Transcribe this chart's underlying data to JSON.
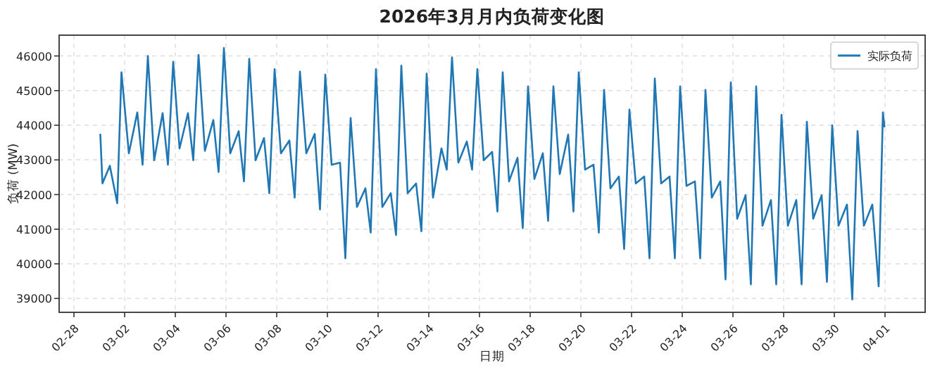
{
  "chart_data": {
    "type": "line",
    "title": "2026年3月月内负荷变化图",
    "xlabel": "日期",
    "ylabel": "负荷 (MW)",
    "x": [
      "2026-03-01T01:00",
      "2026-03-01T03:00",
      "2026-03-01T10:00",
      "2026-03-01T17:00",
      "2026-03-01T21:00",
      "2026-03-02T04:00",
      "2026-03-02T12:00",
      "2026-03-02T17:00",
      "2026-03-02T22:00",
      "2026-03-03T04:00",
      "2026-03-03T12:00",
      "2026-03-03T17:00",
      "2026-03-03T22:00",
      "2026-03-04T04:00",
      "2026-03-04T12:00",
      "2026-03-04T17:00",
      "2026-03-04T22:00",
      "2026-03-05T04:00",
      "2026-03-05T12:00",
      "2026-03-05T17:00",
      "2026-03-05T22:00",
      "2026-03-06T04:00",
      "2026-03-06T12:00",
      "2026-03-06T17:00",
      "2026-03-06T22:00",
      "2026-03-07T04:00",
      "2026-03-07T12:00",
      "2026-03-07T17:00",
      "2026-03-07T22:00",
      "2026-03-08T04:00",
      "2026-03-08T12:00",
      "2026-03-08T17:00",
      "2026-03-08T22:00",
      "2026-03-09T04:00",
      "2026-03-09T12:00",
      "2026-03-09T17:00",
      "2026-03-09T22:00",
      "2026-03-10T04:00",
      "2026-03-10T12:00",
      "2026-03-10T17:00",
      "2026-03-10T22:00",
      "2026-03-11T04:00",
      "2026-03-11T12:00",
      "2026-03-11T17:00",
      "2026-03-11T22:00",
      "2026-03-12T04:00",
      "2026-03-12T12:00",
      "2026-03-12T17:00",
      "2026-03-12T22:00",
      "2026-03-13T04:00",
      "2026-03-13T12:00",
      "2026-03-13T17:00",
      "2026-03-13T22:00",
      "2026-03-14T04:00",
      "2026-03-14T12:00",
      "2026-03-14T17:00",
      "2026-03-14T22:00",
      "2026-03-15T04:00",
      "2026-03-15T12:00",
      "2026-03-15T17:00",
      "2026-03-15T22:00",
      "2026-03-16T04:00",
      "2026-03-16T12:00",
      "2026-03-16T17:00",
      "2026-03-16T22:00",
      "2026-03-17T04:00",
      "2026-03-17T12:00",
      "2026-03-17T17:00",
      "2026-03-17T22:00",
      "2026-03-18T04:00",
      "2026-03-18T12:00",
      "2026-03-18T17:00",
      "2026-03-18T22:00",
      "2026-03-19T04:00",
      "2026-03-19T12:00",
      "2026-03-19T17:00",
      "2026-03-19T22:00",
      "2026-03-20T04:00",
      "2026-03-20T12:00",
      "2026-03-20T17:00",
      "2026-03-20T22:00",
      "2026-03-21T04:00",
      "2026-03-21T12:00",
      "2026-03-21T17:00",
      "2026-03-21T22:00",
      "2026-03-22T04:00",
      "2026-03-22T12:00",
      "2026-03-22T17:00",
      "2026-03-22T22:00",
      "2026-03-23T04:00",
      "2026-03-23T12:00",
      "2026-03-23T17:00",
      "2026-03-23T22:00",
      "2026-03-24T04:00",
      "2026-03-24T12:00",
      "2026-03-24T17:00",
      "2026-03-24T22:00",
      "2026-03-25T04:00",
      "2026-03-25T12:00",
      "2026-03-25T17:00",
      "2026-03-25T22:00",
      "2026-03-26T04:00",
      "2026-03-26T12:00",
      "2026-03-26T17:00",
      "2026-03-26T22:00",
      "2026-03-27T04:00",
      "2026-03-27T12:00",
      "2026-03-27T17:00",
      "2026-03-27T22:00",
      "2026-03-28T04:00",
      "2026-03-28T12:00",
      "2026-03-28T17:00",
      "2026-03-28T22:00",
      "2026-03-29T04:00",
      "2026-03-29T12:00",
      "2026-03-29T17:00",
      "2026-03-29T22:00",
      "2026-03-30T04:00",
      "2026-03-30T12:00",
      "2026-03-30T17:00",
      "2026-03-30T22:00",
      "2026-03-31T04:00",
      "2026-03-31T12:00",
      "2026-03-31T18:00",
      "2026-03-31T22:00",
      "2026-03-31T23:30"
    ],
    "series": [
      {
        "name": "实际负荷",
        "color": "#1f77b4",
        "values": [
          43730,
          42320,
          42830,
          41750,
          45530,
          43190,
          44370,
          42860,
          46000,
          42990,
          44350,
          42860,
          45830,
          43330,
          44350,
          42990,
          46030,
          43260,
          44150,
          42650,
          46230,
          43190,
          43830,
          42380,
          45920,
          42990,
          43630,
          42040,
          45620,
          43190,
          43560,
          41910,
          45550,
          43190,
          43750,
          41570,
          45460,
          42860,
          42920,
          40160,
          44210,
          41640,
          42180,
          40900,
          45620,
          41640,
          42040,
          40830,
          45720,
          42040,
          42320,
          40940,
          45490,
          41910,
          43330,
          42720,
          45960,
          42920,
          43530,
          42720,
          45620,
          42990,
          43230,
          41510,
          45530,
          42380,
          43060,
          41030,
          45120,
          42450,
          43190,
          41240,
          45120,
          42590,
          43730,
          41510,
          45530,
          42720,
          42860,
          40900,
          45020,
          42180,
          42520,
          40430,
          44450,
          42320,
          42520,
          40160,
          45350,
          42320,
          42520,
          40160,
          45120,
          42250,
          42380,
          40160,
          45020,
          41910,
          42380,
          39550,
          45240,
          41300,
          41980,
          39410,
          45120,
          41100,
          41840,
          39410,
          44300,
          41100,
          41840,
          39410,
          44100,
          41300,
          41980,
          39480,
          44000,
          41100,
          41710,
          38970,
          43830,
          41100,
          41710,
          39350,
          44370,
          43960
        ]
      }
    ],
    "xlim": [
      "2026-02-27T10:00",
      "2026-04-02T14:00"
    ],
    "xticks": [
      {
        "value": "2026-02-28",
        "label": "02-28"
      },
      {
        "value": "2026-03-02",
        "label": "03-02"
      },
      {
        "value": "2026-03-04",
        "label": "03-04"
      },
      {
        "value": "2026-03-06",
        "label": "03-06"
      },
      {
        "value": "2026-03-08",
        "label": "03-08"
      },
      {
        "value": "2026-03-10",
        "label": "03-10"
      },
      {
        "value": "2026-03-12",
        "label": "03-12"
      },
      {
        "value": "2026-03-14",
        "label": "03-14"
      },
      {
        "value": "2026-03-16",
        "label": "03-16"
      },
      {
        "value": "2026-03-18",
        "label": "03-18"
      },
      {
        "value": "2026-03-20",
        "label": "03-20"
      },
      {
        "value": "2026-03-22",
        "label": "03-22"
      },
      {
        "value": "2026-03-24",
        "label": "03-24"
      },
      {
        "value": "2026-03-26",
        "label": "03-26"
      },
      {
        "value": "2026-03-28",
        "label": "03-28"
      },
      {
        "value": "2026-03-30",
        "label": "03-30"
      },
      {
        "value": "2026-04-01",
        "label": "04-01"
      }
    ],
    "ylim": [
      38600,
      46600
    ],
    "yticks": [
      39000,
      40000,
      41000,
      42000,
      43000,
      44000,
      45000,
      46000
    ],
    "grid": true,
    "legend": "top right",
    "marker": "none",
    "line_style": "solid"
  }
}
